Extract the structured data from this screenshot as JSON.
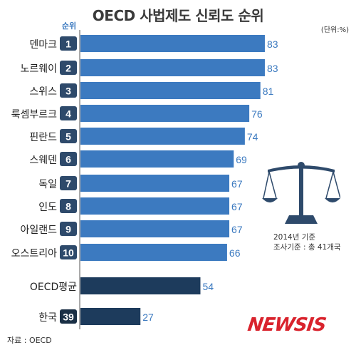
{
  "header": {
    "title": "OECD 사법제도 신뢰도 순위",
    "unit": "(단위:%)",
    "rank_label": "순위"
  },
  "note": {
    "line1": "2014년 기준",
    "line2": "조사기준 : 총 41개국"
  },
  "footer": {
    "source": "자료 : OECD",
    "logo": "NEWSIS"
  },
  "icons": {
    "illustration": "balance-scale-icon"
  },
  "colors": {
    "bar": "#3c7ac0",
    "highlight": "#1d3b5c",
    "value_text": "#3c7ac0",
    "rank_box": "#2e4a6b",
    "korea_rank_box": "#1a2f45"
  },
  "chart_data": {
    "type": "bar",
    "orientation": "horizontal",
    "title": "OECD 사법제도 신뢰도 순위",
    "unit": "%",
    "xlim": [
      0,
      100
    ],
    "grid": false,
    "items": [
      {
        "name": "덴마크",
        "rank": "1",
        "value": 83,
        "group": "country"
      },
      {
        "name": "노르웨이",
        "rank": "2",
        "value": 83,
        "group": "country"
      },
      {
        "name": "스위스",
        "rank": "3",
        "value": 81,
        "group": "country"
      },
      {
        "name": "룩셈부르크",
        "rank": "4",
        "value": 76,
        "group": "country"
      },
      {
        "name": "핀란드",
        "rank": "5",
        "value": 74,
        "group": "country"
      },
      {
        "name": "스웨덴",
        "rank": "6",
        "value": 69,
        "group": "country"
      },
      {
        "name": "독일",
        "rank": "7",
        "value": 67,
        "group": "country"
      },
      {
        "name": "인도",
        "rank": "8",
        "value": 67,
        "group": "country"
      },
      {
        "name": "아일랜드",
        "rank": "9",
        "value": 67,
        "group": "country"
      },
      {
        "name": "오스트리아",
        "rank": "10",
        "value": 66,
        "group": "country"
      },
      {
        "name": "OECD평균",
        "rank": "",
        "value": 54,
        "group": "average"
      },
      {
        "name": "한국",
        "rank": "39",
        "value": 27,
        "group": "korea"
      }
    ]
  }
}
